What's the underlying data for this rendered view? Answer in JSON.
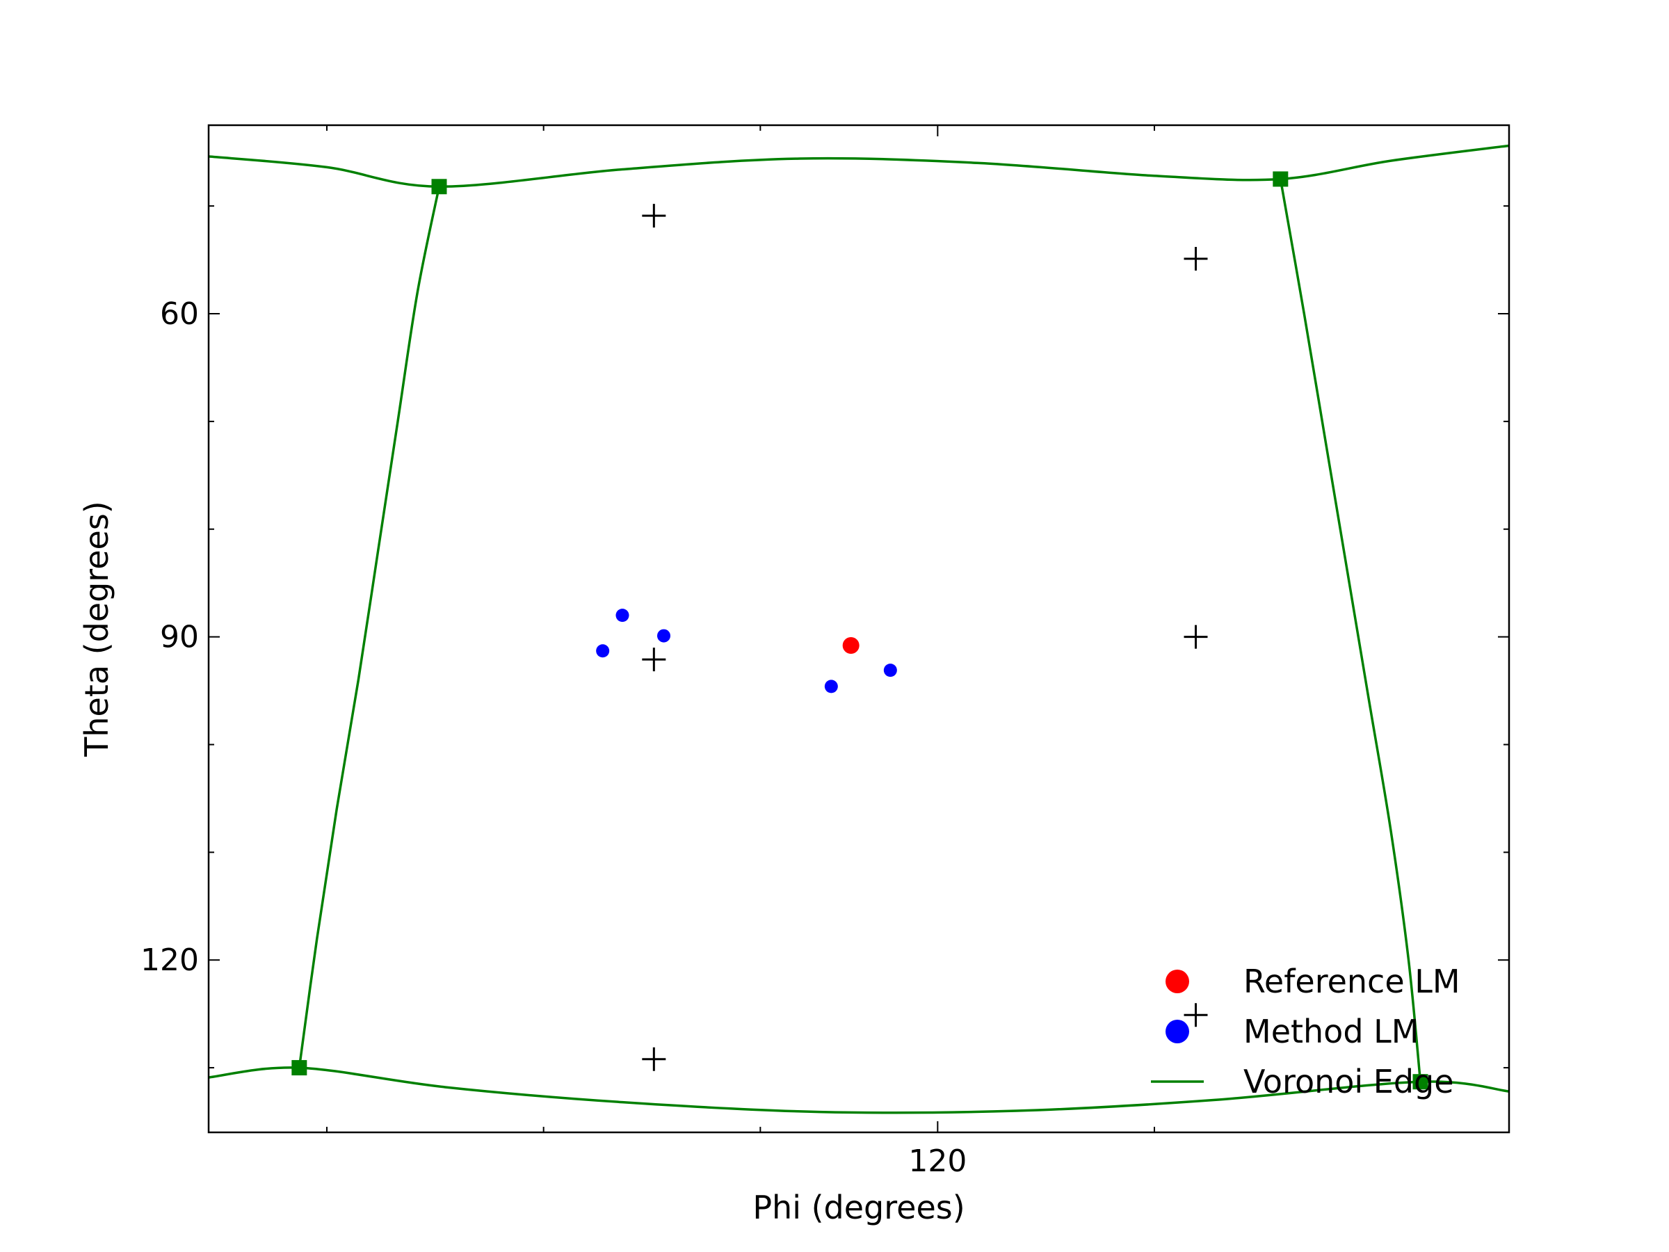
{
  "chart_data": {
    "type": "scatter",
    "title": "",
    "xlabel": "Phi (degrees)",
    "ylabel": "Theta (degrees)",
    "xlim": [
      83,
      149
    ],
    "ylim": [
      136,
      42.5
    ],
    "y_inverted": true,
    "x_ticks_major": [
      120
    ],
    "x_ticks_minor": [
      89,
      100,
      111,
      131
    ],
    "y_ticks_major": [
      60,
      90,
      120
    ],
    "y_ticks_minor": [
      50,
      70,
      80,
      100,
      110,
      130
    ],
    "grid": false,
    "legend_position": "lower-right",
    "colors": {
      "reference": "#ff0000",
      "method": "#0000ff",
      "voronoi": "#008000",
      "plus": "#000000"
    },
    "series": [
      {
        "name": "Reference LM",
        "marker": "circle",
        "color": "#ff0000",
        "points": [
          [
            115.6,
            90.8
          ]
        ]
      },
      {
        "name": "Method LM",
        "marker": "circle",
        "color": "#0000ff",
        "points": [
          [
            104.0,
            88.0
          ],
          [
            106.1,
            89.9
          ],
          [
            103.0,
            91.3
          ],
          [
            114.6,
            94.6
          ],
          [
            117.6,
            93.1
          ]
        ]
      },
      {
        "name": "Voronoi Edge",
        "marker": "line",
        "color": "#008000",
        "curves": [
          [
            [
              83.0,
              45.4
            ],
            [
              89.0,
              46.4
            ],
            [
              94.7,
              48.2
            ],
            [
              104.0,
              46.6
            ],
            [
              113.0,
              45.6
            ],
            [
              122.0,
              46.0
            ],
            [
              131.0,
              47.2
            ],
            [
              137.4,
              47.5
            ],
            [
              143.0,
              45.8
            ],
            [
              149.0,
              44.4
            ]
          ],
          [
            [
              94.7,
              48.2
            ],
            [
              93.6,
              58.0
            ],
            [
              92.6,
              70.0
            ],
            [
              91.6,
              82.0
            ],
            [
              90.6,
              94.0
            ],
            [
              89.5,
              106.0
            ],
            [
              88.5,
              118.0
            ],
            [
              87.6,
              130.0
            ]
          ],
          [
            [
              137.4,
              47.5
            ],
            [
              138.6,
              60.0
            ],
            [
              139.7,
              72.0
            ],
            [
              140.8,
              84.0
            ],
            [
              141.9,
              96.0
            ],
            [
              143.0,
              108.0
            ],
            [
              143.9,
              120.0
            ],
            [
              144.5,
              131.3
            ]
          ],
          [
            [
              83.0,
              130.9
            ],
            [
              87.6,
              130.0
            ],
            [
              95.0,
              131.8
            ],
            [
              104.0,
              133.2
            ],
            [
              114.0,
              134.1
            ],
            [
              124.0,
              134.0
            ],
            [
              134.0,
              133.0
            ],
            [
              144.5,
              131.3
            ],
            [
              149.0,
              132.2
            ]
          ]
        ],
        "vertices": [
          [
            94.7,
            48.2
          ],
          [
            137.4,
            47.5
          ],
          [
            87.6,
            130.0
          ],
          [
            144.5,
            131.3
          ]
        ]
      }
    ],
    "plus_markers": [
      [
        105.6,
        50.9
      ],
      [
        133.1,
        54.9
      ],
      [
        105.6,
        92.1
      ],
      [
        133.1,
        90.0
      ],
      [
        105.6,
        129.2
      ],
      [
        133.1,
        125.1
      ]
    ]
  }
}
